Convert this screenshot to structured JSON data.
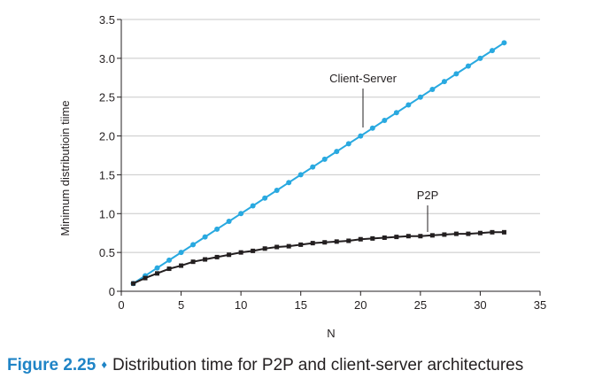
{
  "chart_data": {
    "type": "line",
    "ylabel": "Minimum distributioin tiime",
    "xlabel": "N",
    "xlim": [
      0,
      35
    ],
    "ylim": [
      0,
      3.5
    ],
    "xticks": [
      0,
      5,
      10,
      15,
      20,
      25,
      30,
      35
    ],
    "yticks": [
      0,
      0.5,
      1.0,
      1.5,
      2.0,
      2.5,
      3.0,
      3.5
    ],
    "ytick_labels": [
      "0",
      "0.5",
      "1.0",
      "1.5",
      "2.0",
      "2.5",
      "3.0",
      "3.5"
    ],
    "grid": "horizontal",
    "x": [
      1,
      2,
      3,
      4,
      5,
      6,
      7,
      8,
      9,
      10,
      11,
      12,
      13,
      14,
      15,
      16,
      17,
      18,
      19,
      20,
      21,
      22,
      23,
      24,
      25,
      26,
      27,
      28,
      29,
      30,
      31,
      32
    ],
    "series": [
      {
        "name": "Client-Server",
        "color": "#29a9e0",
        "marker": "circle",
        "values": [
          0.1,
          0.2,
          0.3,
          0.4,
          0.5,
          0.6,
          0.7,
          0.8,
          0.9,
          1.0,
          1.1,
          1.2,
          1.3,
          1.4,
          1.5,
          1.6,
          1.7,
          1.8,
          1.9,
          2.0,
          2.1,
          2.2,
          2.3,
          2.4,
          2.5,
          2.6,
          2.7,
          2.8,
          2.9,
          3.0,
          3.1,
          3.2
        ]
      },
      {
        "name": "P2P",
        "color": "#231f20",
        "marker": "square",
        "values": [
          0.1,
          0.17,
          0.23,
          0.29,
          0.33,
          0.38,
          0.41,
          0.44,
          0.47,
          0.5,
          0.52,
          0.55,
          0.57,
          0.58,
          0.6,
          0.62,
          0.63,
          0.64,
          0.65,
          0.67,
          0.68,
          0.69,
          0.7,
          0.71,
          0.71,
          0.72,
          0.73,
          0.74,
          0.74,
          0.75,
          0.76,
          0.76
        ]
      }
    ]
  },
  "caption": {
    "figure_number": "Figure 2.25",
    "separator": "♦",
    "text": "Distribution time for P2P and client-server architectures"
  }
}
